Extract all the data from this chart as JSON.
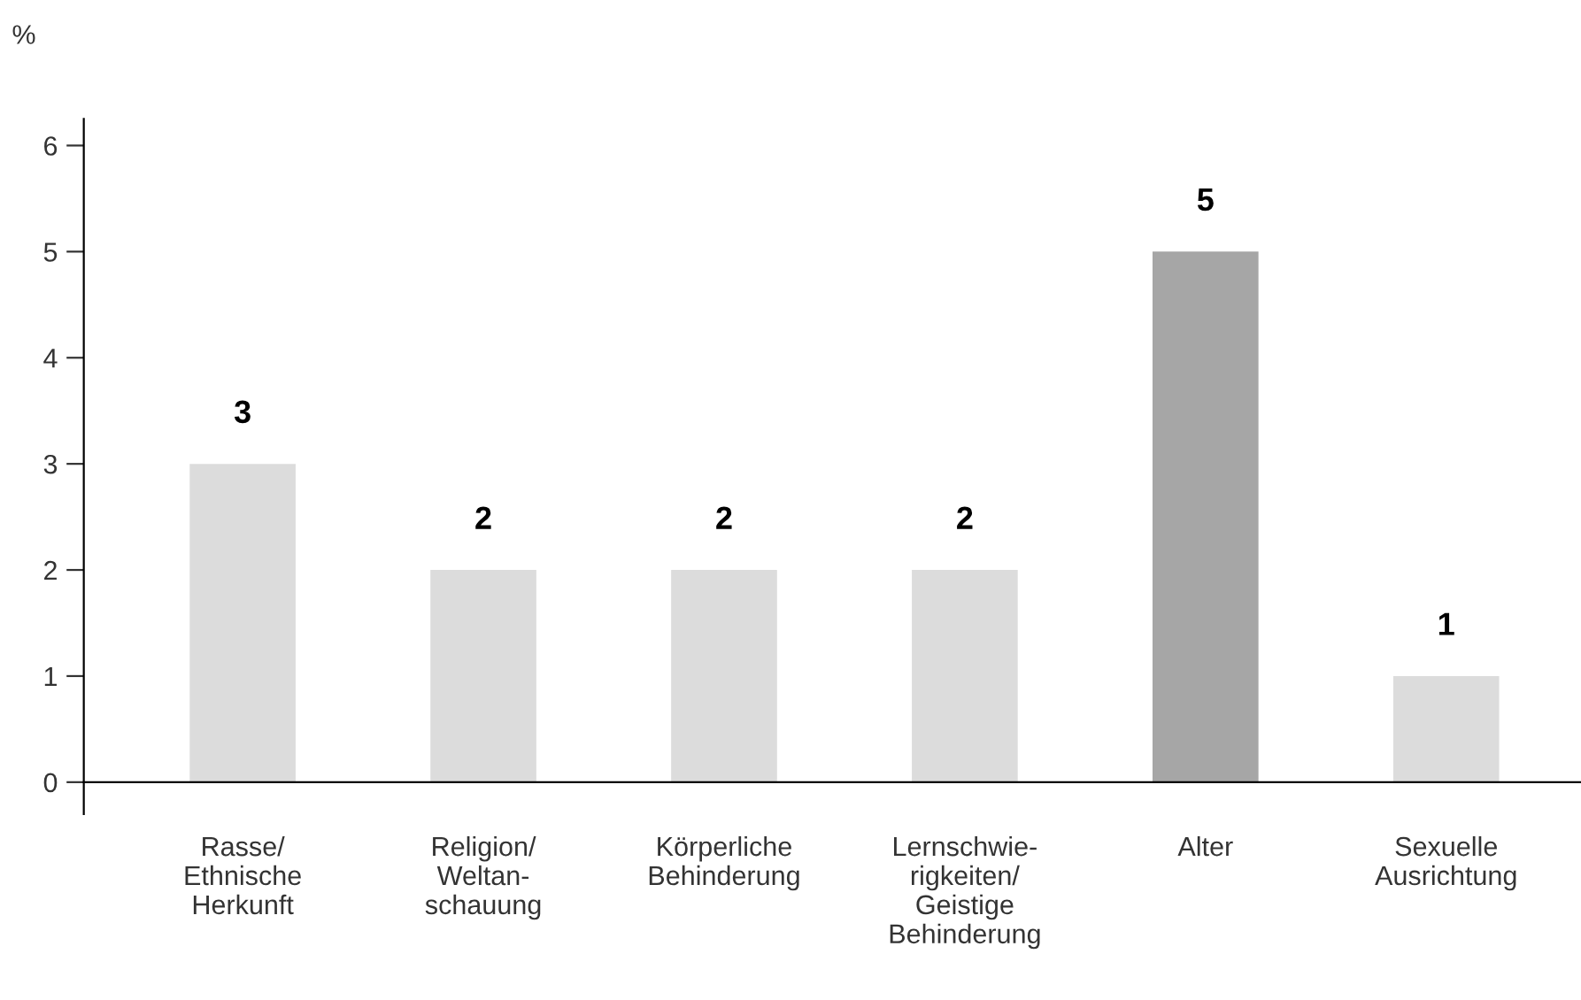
{
  "chart_data": {
    "type": "bar",
    "ylabel": "%",
    "categories": [
      "Rasse/\nEthnische\nHerkunft",
      "Religion/\nWeltan-\nschauung",
      "Körperliche\nBehinderung",
      "Lernschwie-\nrigkeiten/\nGeistige\nBehinderung",
      "Alter",
      "Sexuelle\nAusrichtung"
    ],
    "values": [
      3,
      2,
      2,
      2,
      5,
      1
    ],
    "colors": [
      "#dcdcdc",
      "#dcdcdc",
      "#dcdcdc",
      "#dcdcdc",
      "#a6a6a6",
      "#dcdcdc"
    ],
    "ylim": [
      -0.3,
      6.25
    ],
    "yticks": [
      0,
      1,
      2,
      3,
      4,
      5,
      6
    ],
    "data_labels": true,
    "grid": false,
    "legend": false
  }
}
